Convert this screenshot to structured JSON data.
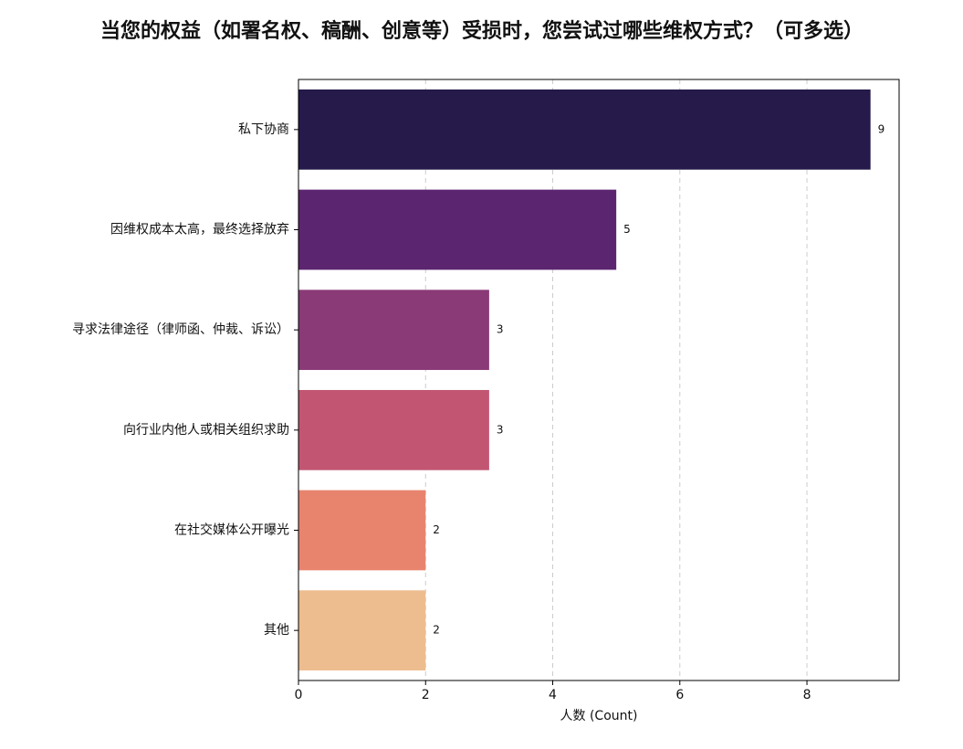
{
  "chart_data": {
    "type": "barh",
    "title": "当您的权益（如署名权、稿酬、创意等）受损时，您尝试过哪些维权方式？（可多选）",
    "xlabel": "人数 (Count)",
    "categories": [
      "私下协商",
      "因维权成本太高，最终选择放弃",
      "寻求法律途径（律师函、仲裁、诉讼）",
      "向行业内他人或相关组织求助",
      "在社交媒体公开曝光",
      "其他"
    ],
    "values": [
      9,
      5,
      3,
      3,
      2,
      2
    ],
    "colors": [
      "#251a4a",
      "#5c2570",
      "#8a3a76",
      "#c25672",
      "#e8846e",
      "#edbd8f"
    ],
    "xlim": [
      0,
      9.45
    ],
    "xticks": [
      0,
      2,
      4,
      6,
      8
    ],
    "grid": true
  }
}
